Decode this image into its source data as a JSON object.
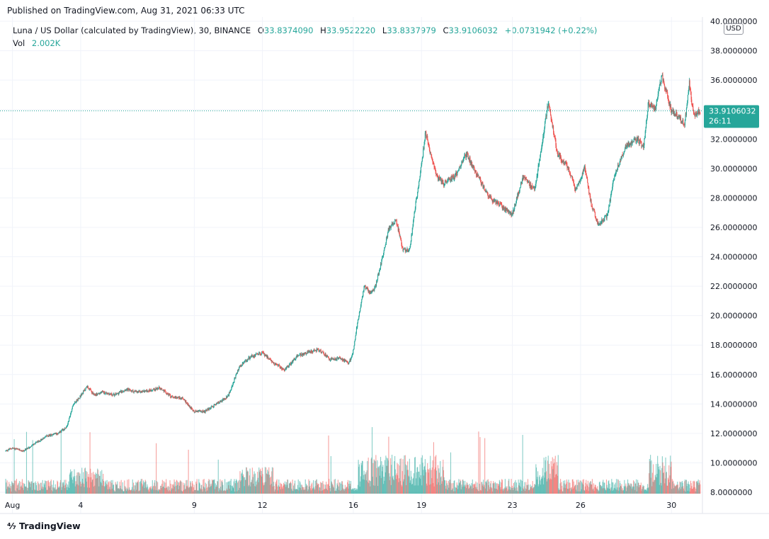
{
  "published": "Published on TradingView.com, Aug 31, 2021 06:33 UTC",
  "legend": {
    "symbol": "Luna / US Dollar (calculated by TradingView), 30, BINANCE",
    "open_label": "O",
    "open": "33.8374090",
    "high_label": "H",
    "high": "33.9522220",
    "low_label": "L",
    "low": "33.8337979",
    "close_label": "C",
    "close": "33.9106032",
    "change": "+0.0731942 (+0.22%)",
    "vol_label": "Vol",
    "vol": "2.002K"
  },
  "currency": "USD",
  "price_tag": {
    "price": "33.9106032",
    "countdown": "26:11"
  },
  "footer_brand": "TradingView",
  "colors": {
    "up": "#26a69a",
    "down": "#ef5350",
    "grid": "#f0f3fa",
    "tag": "#26a69a"
  },
  "chart_data": {
    "type": "candlestick",
    "title": "",
    "y_ticks": [
      "40.0000000",
      "38.0000000",
      "36.0000000",
      "34.0000000",
      "32.0000000",
      "30.0000000",
      "28.0000000",
      "26.0000000",
      "24.0000000",
      "22.0000000",
      "20.0000000",
      "18.0000000",
      "16.0000000",
      "14.0000000",
      "12.0000000",
      "10.0000000",
      "8.0000000"
    ],
    "ylim": [
      8,
      40
    ],
    "x_ticks": [
      {
        "label": "Aug",
        "day": 1
      },
      {
        "label": "4",
        "day": 4
      },
      {
        "label": "9",
        "day": 9
      },
      {
        "label": "12",
        "day": 12
      },
      {
        "label": "16",
        "day": 16
      },
      {
        "label": "19",
        "day": 19
      },
      {
        "label": "23",
        "day": 23
      },
      {
        "label": "26",
        "day": 26
      },
      {
        "label": "30",
        "day": 30
      }
    ],
    "xlim_days": [
      0.7,
      31.3
    ],
    "last_price": 33.9106032,
    "price_path": [
      [
        0.7,
        10.8
      ],
      [
        1.0,
        11.0
      ],
      [
        1.5,
        10.8
      ],
      [
        2.0,
        11.3
      ],
      [
        2.5,
        11.8
      ],
      [
        3.0,
        12.0
      ],
      [
        3.4,
        12.4
      ],
      [
        3.7,
        14.0
      ],
      [
        4.0,
        14.5
      ],
      [
        4.3,
        15.2
      ],
      [
        4.6,
        14.6
      ],
      [
        5.0,
        14.8
      ],
      [
        5.5,
        14.6
      ],
      [
        6.0,
        15.0
      ],
      [
        6.5,
        14.8
      ],
      [
        7.0,
        14.9
      ],
      [
        7.5,
        15.1
      ],
      [
        8.0,
        14.5
      ],
      [
        8.5,
        14.4
      ],
      [
        9.0,
        13.5
      ],
      [
        9.5,
        13.5
      ],
      [
        10.0,
        14.0
      ],
      [
        10.5,
        14.5
      ],
      [
        11.0,
        16.5
      ],
      [
        11.5,
        17.2
      ],
      [
        12.0,
        17.5
      ],
      [
        12.5,
        16.8
      ],
      [
        13.0,
        16.3
      ],
      [
        13.5,
        17.2
      ],
      [
        14.0,
        17.5
      ],
      [
        14.5,
        17.7
      ],
      [
        15.0,
        17.0
      ],
      [
        15.5,
        17.1
      ],
      [
        15.8,
        16.7
      ],
      [
        16.0,
        17.5
      ],
      [
        16.2,
        19.5
      ],
      [
        16.5,
        22.0
      ],
      [
        16.8,
        21.5
      ],
      [
        17.0,
        22.0
      ],
      [
        17.3,
        24.0
      ],
      [
        17.6,
        26.0
      ],
      [
        17.9,
        26.5
      ],
      [
        18.2,
        24.5
      ],
      [
        18.5,
        24.5
      ],
      [
        18.8,
        28.0
      ],
      [
        19.0,
        30.0
      ],
      [
        19.2,
        32.5
      ],
      [
        19.4,
        31.0
      ],
      [
        19.7,
        29.5
      ],
      [
        20.0,
        29.0
      ],
      [
        20.5,
        29.5
      ],
      [
        21.0,
        31.0
      ],
      [
        21.5,
        29.5
      ],
      [
        22.0,
        28.0
      ],
      [
        22.5,
        27.5
      ],
      [
        23.0,
        26.8
      ],
      [
        23.5,
        29.5
      ],
      [
        24.0,
        28.5
      ],
      [
        24.3,
        31.5
      ],
      [
        24.6,
        34.5
      ],
      [
        25.0,
        31.0
      ],
      [
        25.5,
        30.0
      ],
      [
        25.8,
        28.5
      ],
      [
        26.2,
        30.0
      ],
      [
        26.5,
        27.5
      ],
      [
        26.8,
        26.2
      ],
      [
        27.2,
        26.8
      ],
      [
        27.5,
        29.5
      ],
      [
        28.0,
        31.5
      ],
      [
        28.5,
        32.0
      ],
      [
        28.8,
        31.5
      ],
      [
        29.0,
        34.5
      ],
      [
        29.3,
        34.0
      ],
      [
        29.6,
        36.3
      ],
      [
        30.0,
        34.0
      ],
      [
        30.3,
        33.5
      ],
      [
        30.6,
        33.0
      ],
      [
        30.8,
        35.8
      ],
      [
        31.0,
        33.5
      ],
      [
        31.2,
        33.9
      ]
    ],
    "volume_note": "volume bars scaled to bottom band; y-axis unlabeled for volume"
  }
}
